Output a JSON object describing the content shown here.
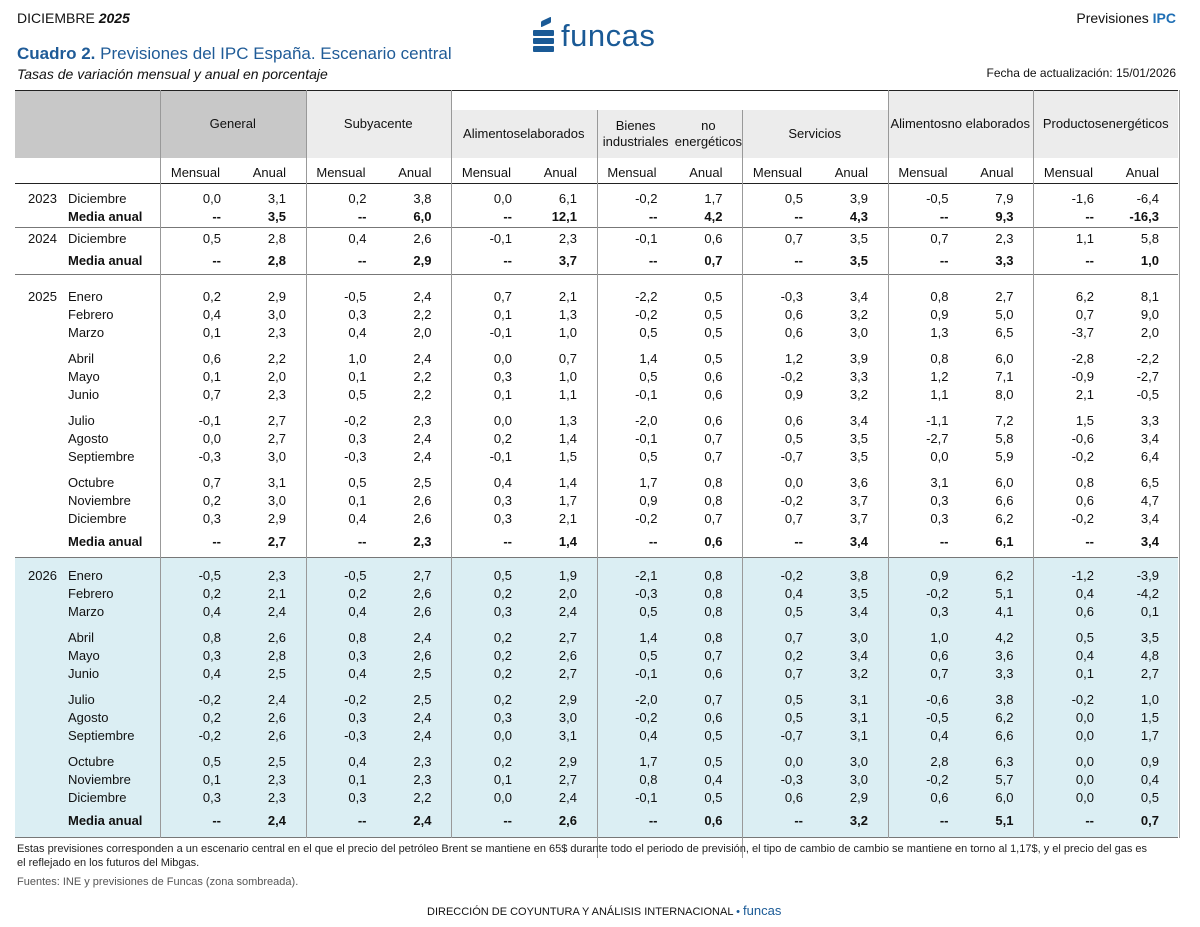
{
  "header": {
    "month": "DICIEMBRE",
    "year": "2025",
    "right_prefix": "Previsiones",
    "right_accent": "IPC",
    "logo_text": "funcas",
    "title_bold": "Cuadro 2.",
    "title_rest": "Previsiones del IPC España. Escenario central",
    "subtitle": "Tasas de variación mensual y anual  en porcentaje",
    "fecha": "Fecha de actualización: 15/01/2026"
  },
  "table": {
    "groups": [
      "General",
      "Subyacente",
      "Alimentos elaborados",
      "Bienes industriales no energéticos",
      "Servicios",
      "Alimentos no elaborados",
      "Productos energéticos"
    ],
    "group_lines": [
      [
        "General"
      ],
      [
        "Subyacente"
      ],
      [
        "Alimentos",
        "elaborados"
      ],
      [
        "Bienes industriales",
        "no energéticos"
      ],
      [
        "Servicios"
      ],
      [
        "Alimentos",
        "no elaborados"
      ],
      [
        "Productos",
        "energéticos"
      ]
    ],
    "sub_headers": [
      "Mensual",
      "Anual"
    ],
    "rows": [
      {
        "year": "2023",
        "month": "Diciembre",
        "values": [
          "0,0",
          "3,1",
          "0,2",
          "3,8",
          "0,0",
          "6,1",
          "-0,2",
          "1,7",
          "0,5",
          "3,9",
          "-0,5",
          "7,9",
          "-1,6",
          "-6,4"
        ]
      },
      {
        "year": "",
        "month": "Media anual",
        "bold": true,
        "values": [
          "--",
          "3,5",
          "--",
          "6,0",
          "--",
          "12,1",
          "--",
          "4,2",
          "--",
          "4,3",
          "--",
          "9,3",
          "--",
          "-16,3"
        ]
      },
      {
        "year": "2024",
        "month": "Diciembre",
        "values": [
          "0,5",
          "2,8",
          "0,4",
          "2,6",
          "-0,1",
          "2,3",
          "-0,1",
          "0,6",
          "0,7",
          "3,5",
          "0,7",
          "2,3",
          "1,1",
          "5,8"
        ]
      },
      {
        "year": "",
        "month": "Media anual",
        "bold": true,
        "values": [
          "--",
          "2,8",
          "--",
          "2,9",
          "--",
          "3,7",
          "--",
          "0,7",
          "--",
          "3,5",
          "--",
          "3,3",
          "--",
          "1,0"
        ]
      },
      {
        "year": "2025",
        "month": "Enero",
        "values": [
          "0,2",
          "2,9",
          "-0,5",
          "2,4",
          "0,7",
          "2,1",
          "-2,2",
          "0,5",
          "-0,3",
          "3,4",
          "0,8",
          "2,7",
          "6,2",
          "8,1"
        ]
      },
      {
        "year": "",
        "month": "Febrero",
        "values": [
          "0,4",
          "3,0",
          "0,3",
          "2,2",
          "0,1",
          "1,3",
          "-0,2",
          "0,5",
          "0,6",
          "3,2",
          "0,9",
          "5,0",
          "0,7",
          "9,0"
        ]
      },
      {
        "year": "",
        "month": "Marzo",
        "values": [
          "0,1",
          "2,3",
          "0,4",
          "2,0",
          "-0,1",
          "1,0",
          "0,5",
          "0,5",
          "0,6",
          "3,0",
          "1,3",
          "6,5",
          "-3,7",
          "2,0"
        ]
      },
      {
        "year": "",
        "month": "Abril",
        "values": [
          "0,6",
          "2,2",
          "1,0",
          "2,4",
          "0,0",
          "0,7",
          "1,4",
          "0,5",
          "1,2",
          "3,9",
          "0,8",
          "6,0",
          "-2,8",
          "-2,2"
        ]
      },
      {
        "year": "",
        "month": "Mayo",
        "values": [
          "0,1",
          "2,0",
          "0,1",
          "2,2",
          "0,3",
          "1,0",
          "0,5",
          "0,6",
          "-0,2",
          "3,3",
          "1,2",
          "7,1",
          "-0,9",
          "-2,7"
        ]
      },
      {
        "year": "",
        "month": "Junio",
        "values": [
          "0,7",
          "2,3",
          "0,5",
          "2,2",
          "0,1",
          "1,1",
          "-0,1",
          "0,6",
          "0,9",
          "3,2",
          "1,1",
          "8,0",
          "2,1",
          "-0,5"
        ]
      },
      {
        "year": "",
        "month": "Julio",
        "values": [
          "-0,1",
          "2,7",
          "-0,2",
          "2,3",
          "0,0",
          "1,3",
          "-2,0",
          "0,6",
          "0,6",
          "3,4",
          "-1,1",
          "7,2",
          "1,5",
          "3,3"
        ]
      },
      {
        "year": "",
        "month": "Agosto",
        "values": [
          "0,0",
          "2,7",
          "0,3",
          "2,4",
          "0,2",
          "1,4",
          "-0,1",
          "0,7",
          "0,5",
          "3,5",
          "-2,7",
          "5,8",
          "-0,6",
          "3,4"
        ]
      },
      {
        "year": "",
        "month": "Septiembre",
        "values": [
          "-0,3",
          "3,0",
          "-0,3",
          "2,4",
          "-0,1",
          "1,5",
          "0,5",
          "0,7",
          "-0,7",
          "3,5",
          "0,0",
          "5,9",
          "-0,2",
          "6,4"
        ]
      },
      {
        "year": "",
        "month": "Octubre",
        "values": [
          "0,7",
          "3,1",
          "0,5",
          "2,5",
          "0,4",
          "1,4",
          "1,7",
          "0,8",
          "0,0",
          "3,6",
          "3,1",
          "6,0",
          "0,8",
          "6,5"
        ]
      },
      {
        "year": "",
        "month": "Noviembre",
        "values": [
          "0,2",
          "3,0",
          "0,1",
          "2,6",
          "0,3",
          "1,7",
          "0,9",
          "0,8",
          "-0,2",
          "3,7",
          "0,3",
          "6,6",
          "0,6",
          "4,7"
        ]
      },
      {
        "year": "",
        "month": "Diciembre",
        "values": [
          "0,3",
          "2,9",
          "0,4",
          "2,6",
          "0,3",
          "2,1",
          "-0,2",
          "0,7",
          "0,7",
          "3,7",
          "0,3",
          "6,2",
          "-0,2",
          "3,4"
        ]
      },
      {
        "year": "",
        "month": "Media anual",
        "bold": true,
        "values": [
          "--",
          "2,7",
          "--",
          "2,3",
          "--",
          "1,4",
          "--",
          "0,6",
          "--",
          "3,4",
          "--",
          "6,1",
          "--",
          "3,4"
        ]
      },
      {
        "year": "2026",
        "month": "Enero",
        "values": [
          "-0,5",
          "2,3",
          "-0,5",
          "2,7",
          "0,5",
          "1,9",
          "-2,1",
          "0,8",
          "-0,2",
          "3,8",
          "0,9",
          "6,2",
          "-1,2",
          "-3,9"
        ]
      },
      {
        "year": "",
        "month": "Febrero",
        "values": [
          "0,2",
          "2,1",
          "0,2",
          "2,6",
          "0,2",
          "2,0",
          "-0,3",
          "0,8",
          "0,4",
          "3,5",
          "-0,2",
          "5,1",
          "0,4",
          "-4,2"
        ]
      },
      {
        "year": "",
        "month": "Marzo",
        "values": [
          "0,4",
          "2,4",
          "0,4",
          "2,6",
          "0,3",
          "2,4",
          "0,5",
          "0,8",
          "0,5",
          "3,4",
          "0,3",
          "4,1",
          "0,6",
          "0,1"
        ]
      },
      {
        "year": "",
        "month": "Abril",
        "values": [
          "0,8",
          "2,6",
          "0,8",
          "2,4",
          "0,2",
          "2,7",
          "1,4",
          "0,8",
          "0,7",
          "3,0",
          "1,0",
          "4,2",
          "0,5",
          "3,5"
        ]
      },
      {
        "year": "",
        "month": "Mayo",
        "values": [
          "0,3",
          "2,8",
          "0,3",
          "2,6",
          "0,2",
          "2,6",
          "0,5",
          "0,7",
          "0,2",
          "3,4",
          "0,6",
          "3,6",
          "0,4",
          "4,8"
        ]
      },
      {
        "year": "",
        "month": "Junio",
        "values": [
          "0,4",
          "2,5",
          "0,4",
          "2,5",
          "0,2",
          "2,7",
          "-0,1",
          "0,6",
          "0,7",
          "3,2",
          "0,7",
          "3,3",
          "0,1",
          "2,7"
        ]
      },
      {
        "year": "",
        "month": "Julio",
        "values": [
          "-0,2",
          "2,4",
          "-0,2",
          "2,5",
          "0,2",
          "2,9",
          "-2,0",
          "0,7",
          "0,5",
          "3,1",
          "-0,6",
          "3,8",
          "-0,2",
          "1,0"
        ]
      },
      {
        "year": "",
        "month": "Agosto",
        "values": [
          "0,2",
          "2,6",
          "0,3",
          "2,4",
          "0,3",
          "3,0",
          "-0,2",
          "0,6",
          "0,5",
          "3,1",
          "-0,5",
          "6,2",
          "0,0",
          "1,5"
        ]
      },
      {
        "year": "",
        "month": "Septiembre",
        "values": [
          "-0,2",
          "2,6",
          "-0,3",
          "2,4",
          "0,0",
          "3,1",
          "0,4",
          "0,5",
          "-0,7",
          "3,1",
          "0,4",
          "6,6",
          "0,0",
          "1,7"
        ]
      },
      {
        "year": "",
        "month": "Octubre",
        "values": [
          "0,5",
          "2,5",
          "0,4",
          "2,3",
          "0,2",
          "2,9",
          "1,7",
          "0,5",
          "0,0",
          "3,0",
          "2,8",
          "6,3",
          "0,0",
          "0,9"
        ]
      },
      {
        "year": "",
        "month": "Noviembre",
        "values": [
          "0,1",
          "2,3",
          "0,1",
          "2,3",
          "0,1",
          "2,7",
          "0,8",
          "0,4",
          "-0,3",
          "3,0",
          "-0,2",
          "5,7",
          "0,0",
          "0,4"
        ]
      },
      {
        "year": "",
        "month": "Diciembre",
        "values": [
          "0,3",
          "2,3",
          "0,3",
          "2,2",
          "0,0",
          "2,4",
          "-0,1",
          "0,5",
          "0,6",
          "2,9",
          "0,6",
          "6,0",
          "0,0",
          "0,5"
        ]
      },
      {
        "year": "",
        "month": "Media anual",
        "bold": true,
        "values": [
          "--",
          "2,4",
          "--",
          "2,4",
          "--",
          "2,6",
          "--",
          "0,6",
          "--",
          "3,2",
          "--",
          "5,1",
          "--",
          "0,7"
        ]
      }
    ]
  },
  "footer": {
    "note": "Estas previsiones corresponden a un escenario central en el que el precio del petróleo Brent se mantiene en 65$ durante todo el periodo de previsión, el tipo de cambio de cambio se mantiene en torno al 1,17$, y el precio del gas es el reflejado en los futuros del Mibgas.",
    "source": "Fuentes: INE y previsiones de Funcas (zona sombreada).",
    "dept": "DIRECCIÓN DE COYUNTURA Y ANÁLISIS INTERNACIONAL",
    "dot": "•",
    "brand": "funcas"
  },
  "colors": {
    "accent": "#1f6fb5",
    "brand": "#1a5a96",
    "shade_forecast": "#dbeef3",
    "header_general": "#c8c8c8",
    "header_light": "#ececec"
  }
}
